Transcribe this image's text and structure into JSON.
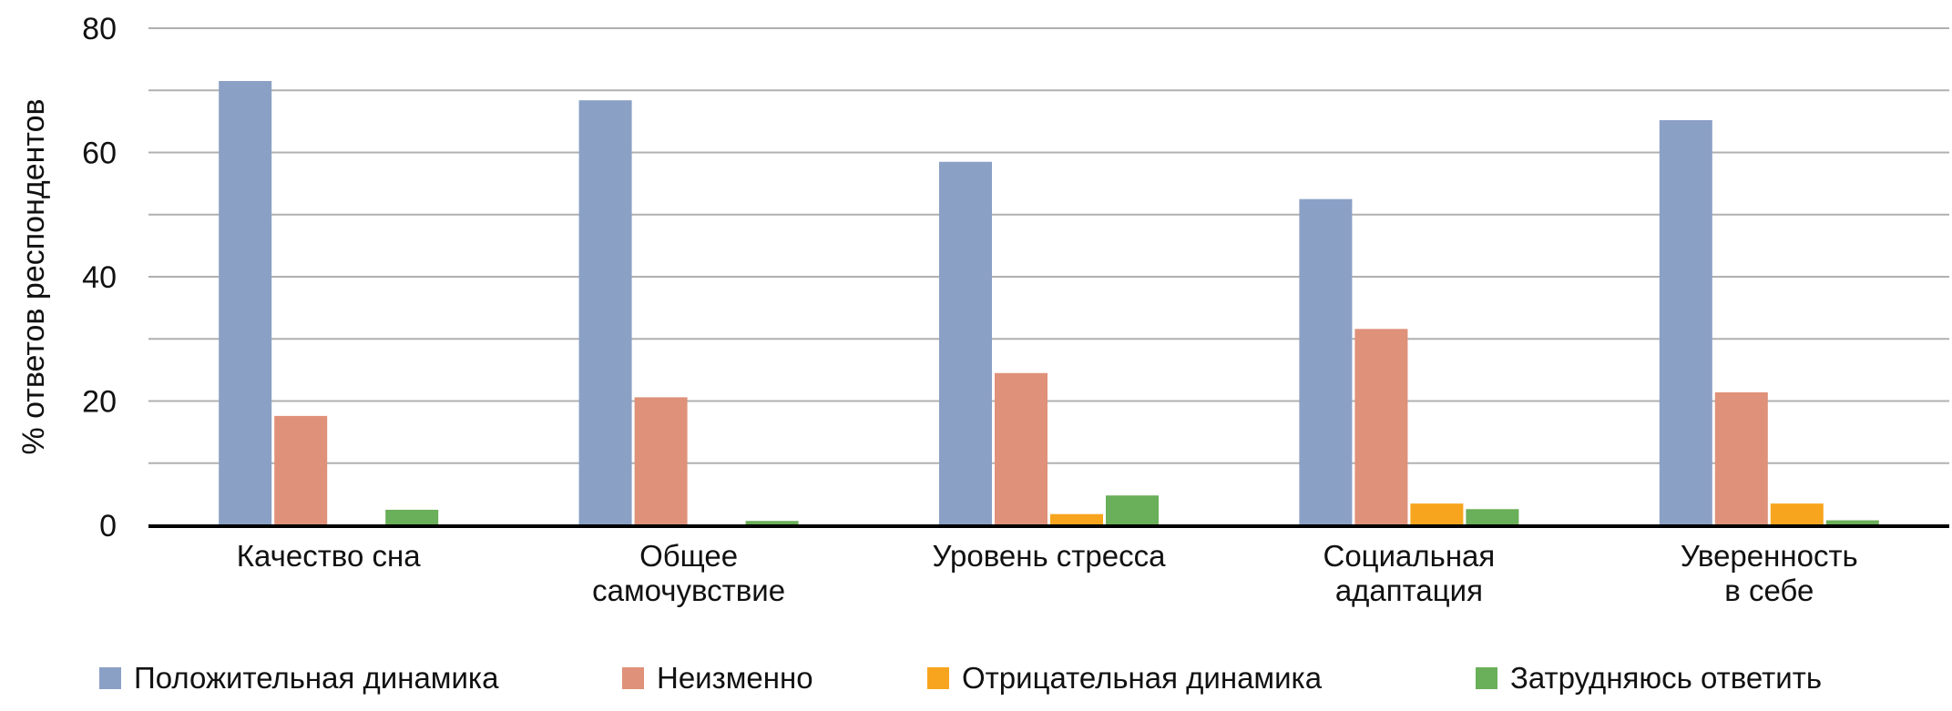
{
  "chart_data": {
    "type": "bar",
    "title": "",
    "xlabel": "",
    "ylabel": "% ответов респондентов",
    "ylim": [
      0,
      80
    ],
    "yticks": [
      0,
      20,
      40,
      60,
      80
    ],
    "grid": true,
    "legend_position": "bottom",
    "categories": [
      [
        "Качество сна"
      ],
      [
        "Общее",
        "самочувствие"
      ],
      [
        "Уровень стресса"
      ],
      [
        "Социальная",
        "адаптация"
      ],
      [
        "Уверенность",
        "в себе"
      ]
    ],
    "series": [
      {
        "name": "Положительная динамика",
        "color": "#8ba0c5",
        "values": [
          71.5,
          68.4,
          58.5,
          52.5,
          65.2
        ]
      },
      {
        "name": "Неизменно",
        "color": "#df917a",
        "values": [
          17.6,
          20.6,
          24.5,
          31.6,
          21.4
        ]
      },
      {
        "name": "Отрицательная динамика",
        "color": "#f7a51e",
        "values": [
          0,
          0,
          1.8,
          3.5,
          3.5
        ]
      },
      {
        "name": "Затрудняюсь ответить",
        "color": "#6aaf59",
        "values": [
          2.5,
          0.7,
          4.8,
          2.6,
          0.8
        ]
      }
    ]
  }
}
